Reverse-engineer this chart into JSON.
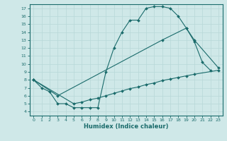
{
  "xlabel": "Humidex (Indice chaleur)",
  "ylabel": "",
  "bg_color": "#cfe8e8",
  "line_color": "#1a6b6b",
  "grid_color": "#b8d8d8",
  "xlim": [
    -0.5,
    23.5
  ],
  "ylim": [
    3.5,
    17.5
  ],
  "yticks": [
    4,
    5,
    6,
    7,
    8,
    9,
    10,
    11,
    12,
    13,
    14,
    15,
    16,
    17
  ],
  "xticks": [
    0,
    1,
    2,
    3,
    4,
    5,
    6,
    7,
    8,
    9,
    10,
    11,
    12,
    13,
    14,
    15,
    16,
    17,
    18,
    19,
    20,
    21,
    22,
    23
  ],
  "curves": [
    {
      "x": [
        0,
        1,
        2,
        3,
        4,
        5,
        6,
        7,
        8,
        9,
        10,
        11,
        12,
        13,
        14,
        15,
        16,
        17,
        18,
        19,
        20,
        21,
        22
      ],
      "y": [
        8.0,
        7.0,
        6.5,
        5.0,
        5.0,
        4.5,
        4.5,
        4.5,
        4.5,
        9.0,
        12.0,
        14.0,
        15.5,
        15.5,
        17.0,
        17.2,
        17.2,
        17.0,
        16.0,
        14.5,
        12.8,
        10.2,
        9.2
      ]
    },
    {
      "x": [
        0,
        3,
        16,
        19,
        20,
        23
      ],
      "y": [
        8.0,
        6.0,
        13.0,
        14.5,
        13.0,
        9.5
      ]
    },
    {
      "x": [
        0,
        5,
        6,
        7,
        8,
        9,
        10,
        11,
        12,
        13,
        14,
        15,
        16,
        17,
        18,
        19,
        20,
        23
      ],
      "y": [
        8.0,
        5.0,
        5.2,
        5.5,
        5.7,
        6.0,
        6.3,
        6.6,
        6.9,
        7.1,
        7.4,
        7.6,
        7.9,
        8.1,
        8.3,
        8.5,
        8.7,
        9.2
      ]
    }
  ],
  "figsize": [
    3.2,
    2.0
  ],
  "dpi": 100
}
